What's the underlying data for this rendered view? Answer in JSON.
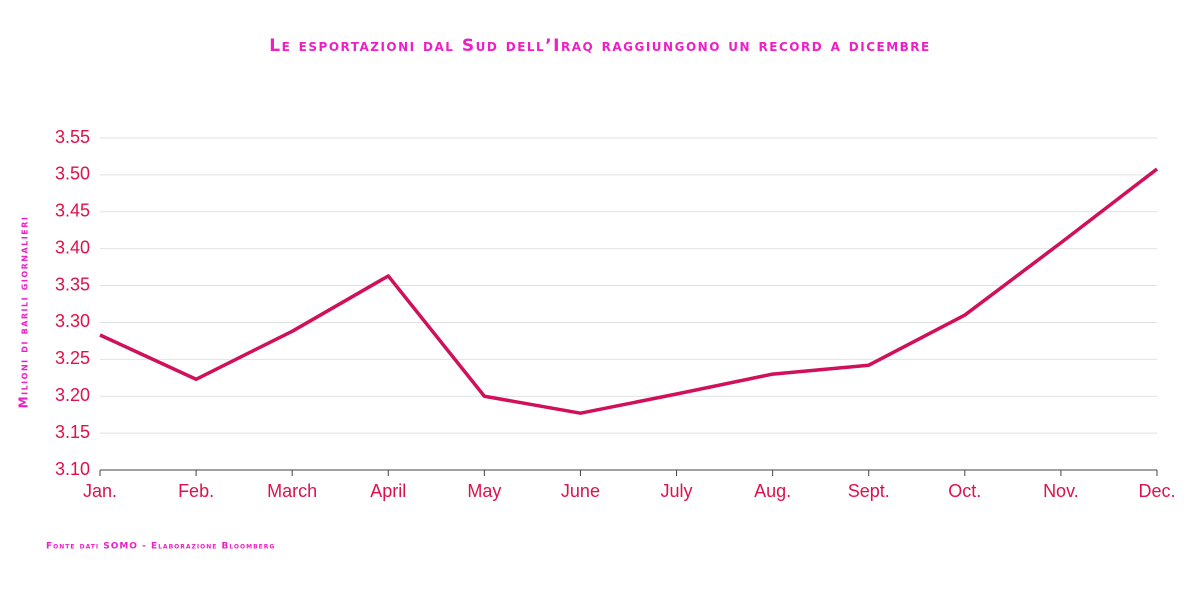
{
  "chart_data": {
    "type": "line",
    "title": "Le esportazioni dal Sud dell’Iraq raggiungono un record a dicembre",
    "y_label": "Milioni di barili giornalieri",
    "source": "Fonte dati SOMO - Elaborazione Bloomberg",
    "categories": [
      "Jan.",
      "Feb.",
      "March",
      "April",
      "May",
      "June",
      "July",
      "Aug.",
      "Sept.",
      "Oct.",
      "Nov.",
      "Dec."
    ],
    "series": [
      {
        "color": "#d0105a",
        "values": [
          3.283,
          3.223,
          3.288,
          3.363,
          3.2,
          3.177,
          3.203,
          3.23,
          3.242,
          3.31,
          3.408,
          3.508
        ]
      }
    ],
    "ylim": [
      3.1,
      3.55
    ],
    "yticks": [
      {
        "value": 3.1,
        "label": "3.10"
      },
      3.15,
      {
        "value": 3.2,
        "label": "3.20"
      },
      3.25,
      {
        "value": 3.3,
        "label": "3.30"
      },
      3.35,
      {
        "value": 3.4,
        "label": "3.40"
      },
      3.45,
      {
        "value": 3.5,
        "label": "3.50"
      },
      3.55
    ],
    "grid": true
  }
}
